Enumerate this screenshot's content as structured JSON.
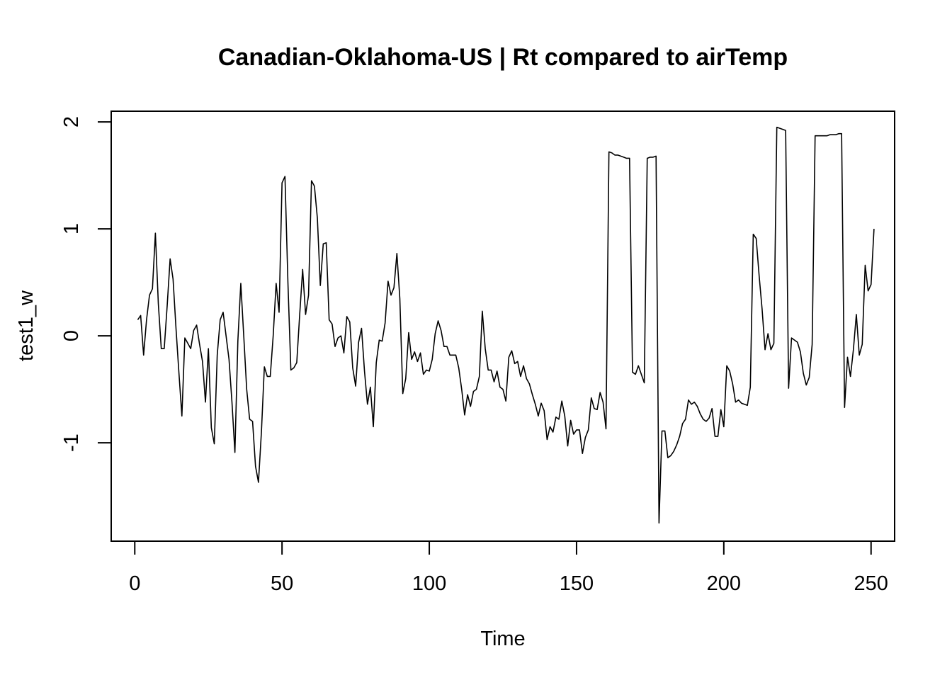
{
  "chart_data": {
    "type": "line",
    "title": "Canadian-Oklahoma-US | Rt compared to airTemp",
    "xlabel": "Time",
    "ylabel": "test1_w",
    "xlim": [
      -8,
      258
    ],
    "ylim": [
      -1.92,
      2.1
    ],
    "xticks": [
      0,
      50,
      100,
      150,
      200,
      250
    ],
    "xtick_labels": [
      "0",
      "50",
      "100",
      "150",
      "200",
      "250"
    ],
    "yticks": [
      -1,
      0,
      1,
      2
    ],
    "ytick_labels": [
      "-1",
      "0",
      "1",
      "2"
    ],
    "grid": false,
    "line_color": "#000000",
    "series": [
      {
        "x_start": 1,
        "x_step": 1,
        "values": [
          0.15,
          0.19,
          -0.18,
          0.15,
          0.38,
          0.44,
          0.96,
          0.3,
          -0.12,
          -0.12,
          0.28,
          0.72,
          0.53,
          0.07,
          -0.35,
          -0.75,
          -0.02,
          -0.07,
          -0.12,
          0.05,
          0.1,
          -0.08,
          -0.24,
          -0.62,
          -0.12,
          -0.86,
          -1.01,
          -0.18,
          0.15,
          0.22,
          0.0,
          -0.22,
          -0.62,
          -1.09,
          -0.05,
          0.49,
          0.0,
          -0.5,
          -0.78,
          -0.8,
          -1.22,
          -1.37,
          -0.9,
          -0.29,
          -0.38,
          -0.38,
          0.0,
          0.49,
          0.22,
          1.43,
          1.49,
          0.5,
          -0.32,
          -0.3,
          -0.25,
          0.2,
          0.62,
          0.2,
          0.38,
          1.45,
          1.4,
          1.1,
          0.47,
          0.86,
          0.87,
          0.15,
          0.11,
          -0.1,
          -0.02,
          0.0,
          -0.16,
          0.18,
          0.13,
          -0.3,
          -0.47,
          -0.06,
          0.07,
          -0.33,
          -0.64,
          -0.48,
          -0.85,
          -0.25,
          -0.04,
          -0.05,
          0.12,
          0.51,
          0.38,
          0.45,
          0.77,
          0.35,
          -0.54,
          -0.4,
          0.03,
          -0.22,
          -0.15,
          -0.24,
          -0.16,
          -0.36,
          -0.32,
          -0.33,
          -0.22,
          0.02,
          0.14,
          0.05,
          -0.1,
          -0.1,
          -0.18,
          -0.18,
          -0.18,
          -0.3,
          -0.5,
          -0.74,
          -0.55,
          -0.66,
          -0.52,
          -0.5,
          -0.38,
          0.23,
          -0.12,
          -0.32,
          -0.32,
          -0.43,
          -0.33,
          -0.48,
          -0.5,
          -0.61,
          -0.2,
          -0.14,
          -0.26,
          -0.24,
          -0.38,
          -0.28,
          -0.4,
          -0.45,
          -0.55,
          -0.64,
          -0.75,
          -0.63,
          -0.7,
          -0.97,
          -0.85,
          -0.9,
          -0.76,
          -0.78,
          -0.61,
          -0.75,
          -1.03,
          -0.79,
          -0.92,
          -0.88,
          -0.88,
          -1.1,
          -0.95,
          -0.88,
          -0.58,
          -0.68,
          -0.69,
          -0.53,
          -0.62,
          -0.87,
          1.72,
          1.71,
          1.69,
          1.69,
          1.68,
          1.67,
          1.66,
          1.66,
          -0.34,
          -0.36,
          -0.28,
          -0.36,
          -0.44,
          1.66,
          1.67,
          1.67,
          1.68,
          -1.75,
          -0.89,
          -0.89,
          -1.14,
          -1.12,
          -1.08,
          -1.02,
          -0.94,
          -0.82,
          -0.78,
          -0.6,
          -0.64,
          -0.62,
          -0.66,
          -0.73,
          -0.78,
          -0.8,
          -0.77,
          -0.68,
          -0.94,
          -0.94,
          -0.69,
          -0.85,
          -0.28,
          -0.33,
          -0.45,
          -0.62,
          -0.6,
          -0.63,
          -0.64,
          -0.65,
          -0.48,
          0.95,
          0.91,
          0.56,
          0.25,
          -0.13,
          0.02,
          -0.13,
          -0.07,
          1.95,
          1.94,
          1.93,
          1.92,
          -0.49,
          -0.02,
          -0.04,
          -0.06,
          -0.15,
          -0.35,
          -0.46,
          -0.39,
          -0.08,
          1.87,
          1.87,
          1.87,
          1.87,
          1.87,
          1.88,
          1.88,
          1.88,
          1.89,
          1.89,
          -0.67,
          -0.2,
          -0.38,
          -0.13,
          0.2,
          -0.18,
          -0.08,
          0.66,
          0.42,
          0.48,
          1.0
        ]
      }
    ]
  }
}
